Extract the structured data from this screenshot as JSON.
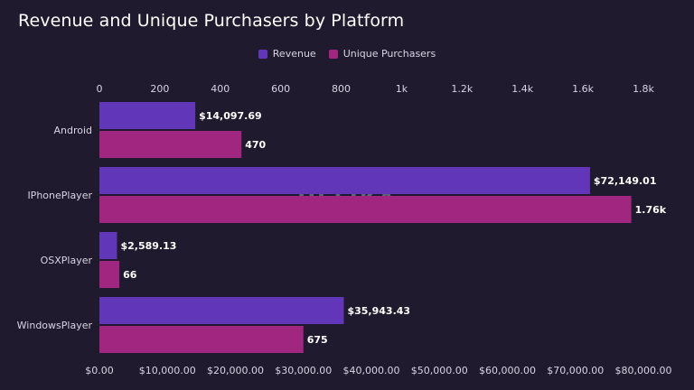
{
  "chart_data": {
    "type": "bar",
    "orientation": "horizontal",
    "title": "Revenue and Unique Purchasers by Platform",
    "categories": [
      "Android",
      "IPhonePlayer",
      "OSXPlayer",
      "WindowsPlayer"
    ],
    "series": [
      {
        "name": "Revenue",
        "axis": "bottom",
        "color": "#6236b8",
        "values": [
          14097.69,
          72149.01,
          2589.13,
          35943.43
        ],
        "labels": [
          "$14,097.69",
          "$72,149.01",
          "$2,589.13",
          "$35,943.43"
        ]
      },
      {
        "name": "Unique Purchasers",
        "axis": "top",
        "color": "#a0267f",
        "values": [
          470,
          1760,
          66,
          675
        ],
        "labels": [
          "470",
          "1.76k",
          "66",
          "675"
        ]
      }
    ],
    "top_axis": {
      "min": 0,
      "max": 1800,
      "ticks": [
        0,
        200,
        400,
        600,
        800,
        1000,
        1200,
        1400,
        1600,
        1800
      ],
      "tick_labels": [
        "0",
        "200",
        "400",
        "600",
        "800",
        "1k",
        "1.2k",
        "1.4k",
        "1.6k",
        "1.8k"
      ]
    },
    "bottom_axis": {
      "min": 0,
      "max": 80000,
      "ticks": [
        0,
        10000,
        20000,
        30000,
        40000,
        50000,
        60000,
        70000,
        80000
      ],
      "tick_labels": [
        "$0.00",
        "$10,000.00",
        "$20,000.00",
        "$30,000.00",
        "$40,000.00",
        "$50,000.00",
        "$60,000.00",
        "$70,000.00",
        "$80,000.00"
      ]
    },
    "grid": false,
    "legend_position": "top-center",
    "watermark": "HELIKA"
  }
}
